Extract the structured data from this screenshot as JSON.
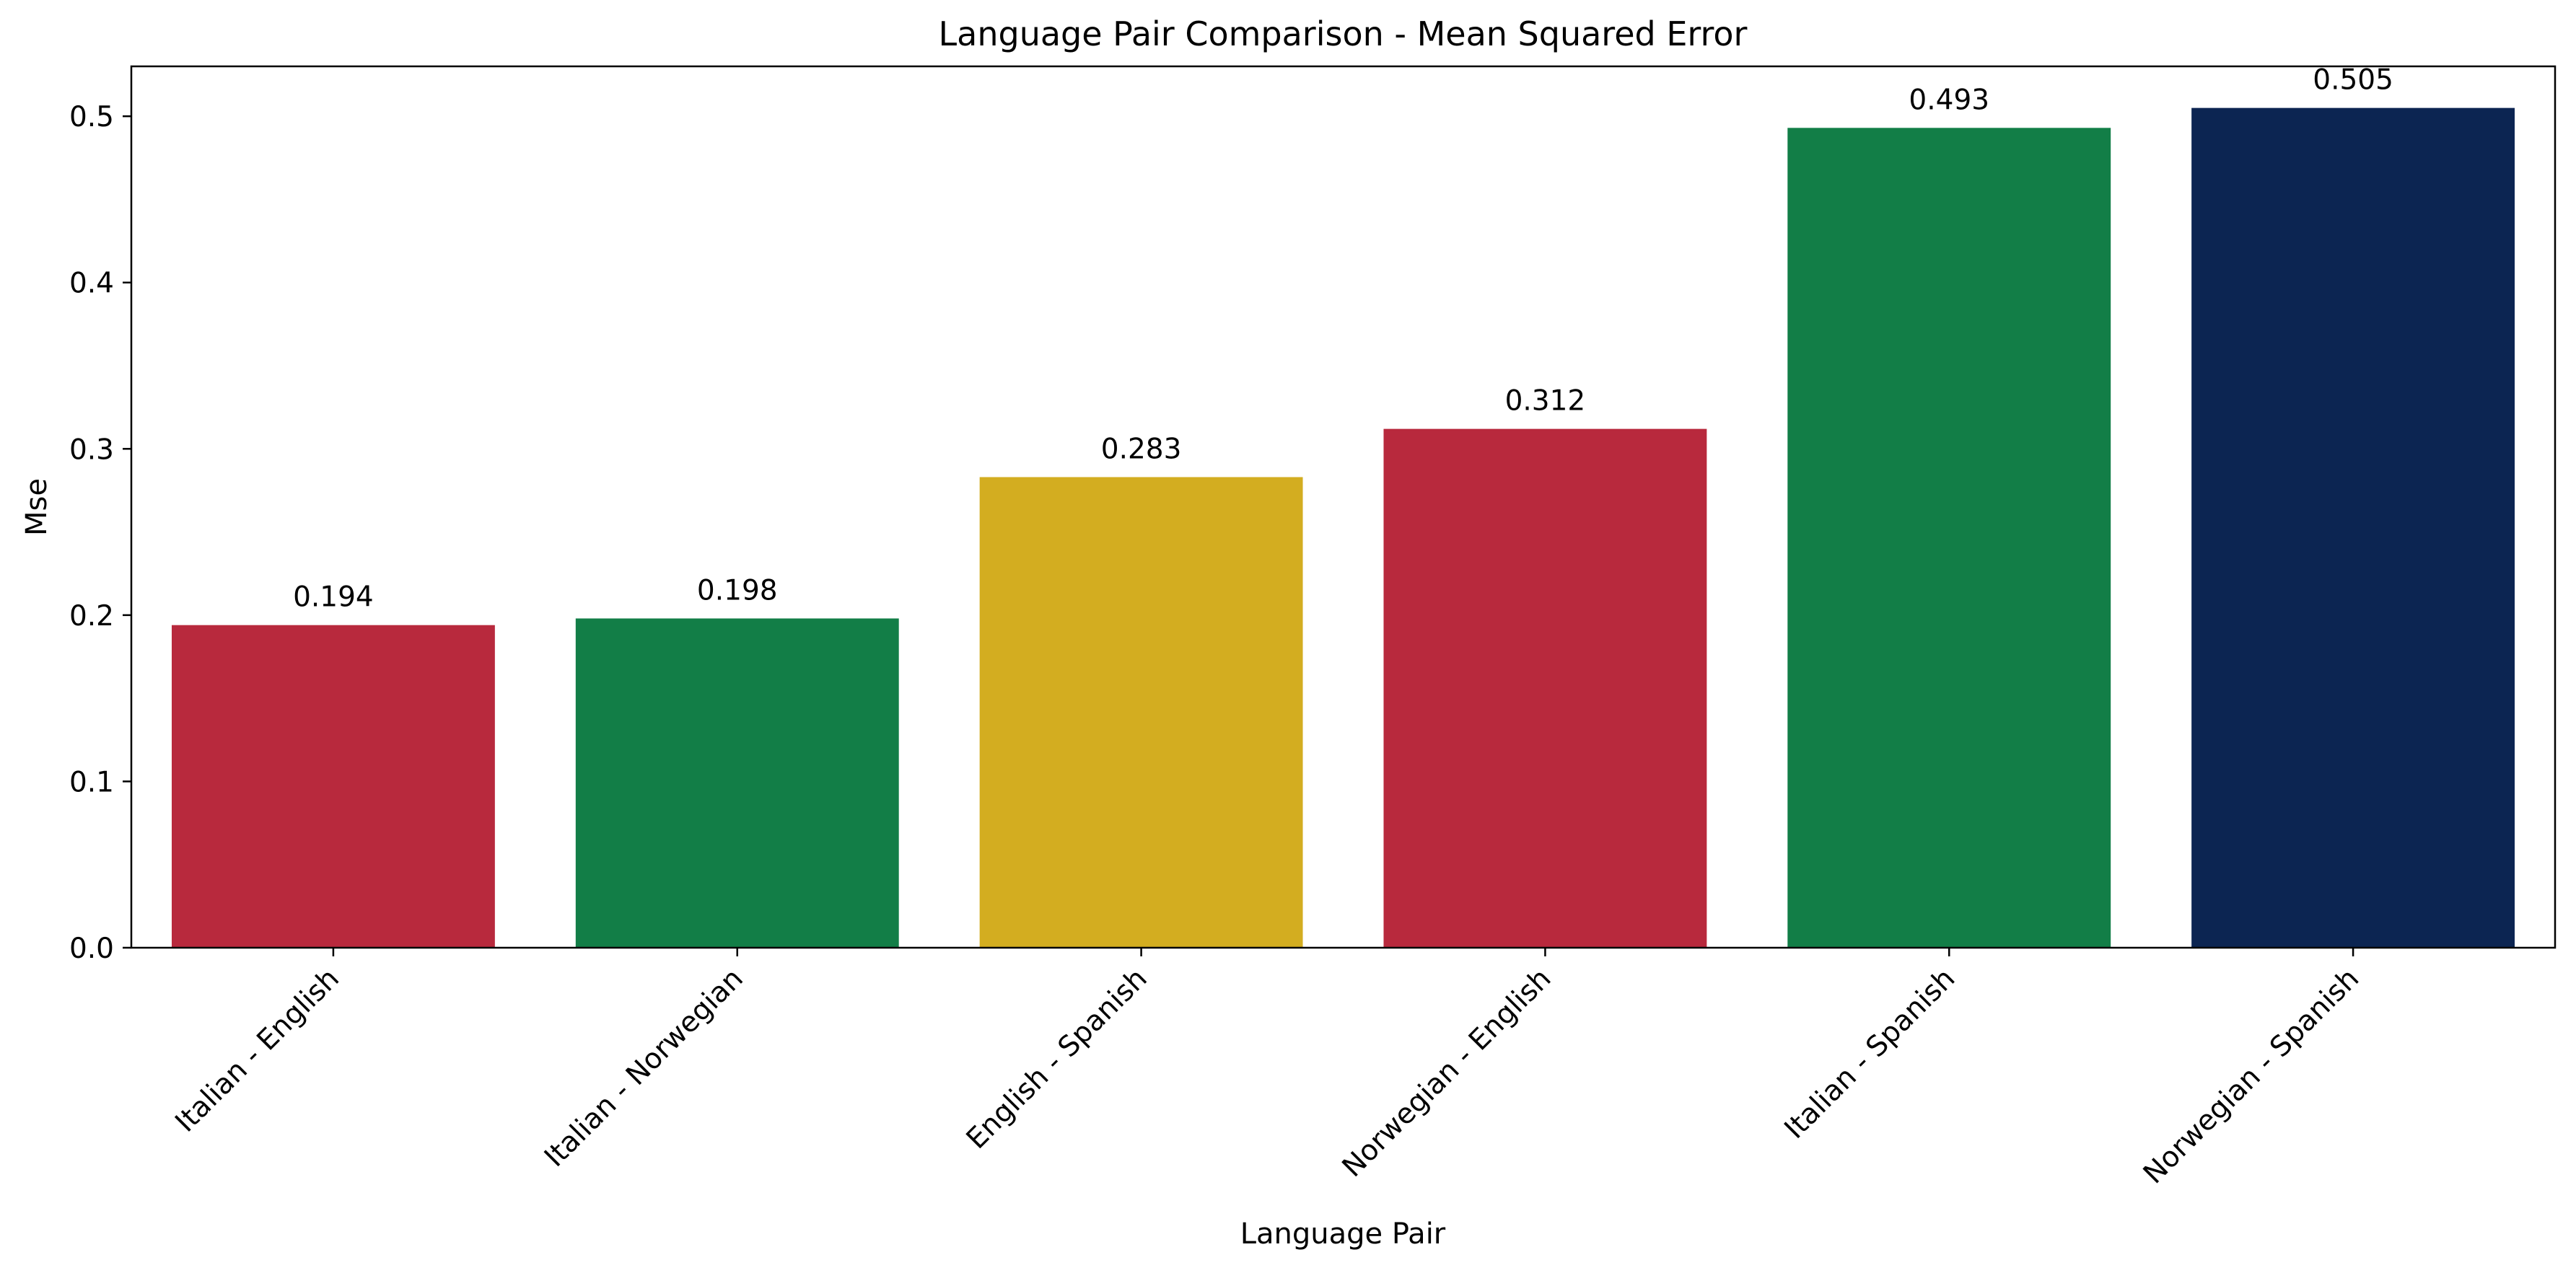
{
  "chart_data": {
    "type": "bar",
    "title": "Language Pair Comparison - Mean Squared Error",
    "xlabel": "Language Pair",
    "ylabel": "Mse",
    "categories": [
      "Italian - English",
      "Italian - Norwegian",
      "English - Spanish",
      "Norwegian - English",
      "Italian - Spanish",
      "Norwegian - Spanish"
    ],
    "values": [
      0.194,
      0.198,
      0.283,
      0.312,
      0.493,
      0.505
    ],
    "value_labels": [
      "0.194",
      "0.198",
      "0.283",
      "0.312",
      "0.493",
      "0.505"
    ],
    "colors": [
      "#b8293d",
      "#127e47",
      "#d3ad20",
      "#b8293d",
      "#127e47",
      "#0c2552"
    ],
    "ylim": [
      0,
      0.53
    ],
    "yticks": [
      0.0,
      0.1,
      0.2,
      0.3,
      0.4,
      0.5
    ],
    "ytick_labels": [
      "0.0",
      "0.1",
      "0.2",
      "0.3",
      "0.4",
      "0.5"
    ],
    "grid": false,
    "legend": "none"
  }
}
